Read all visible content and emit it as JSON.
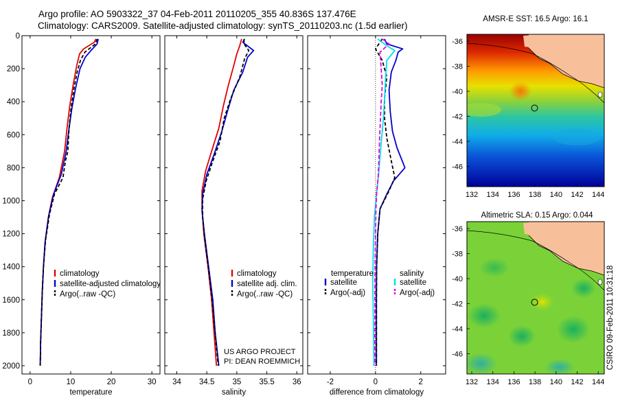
{
  "header": {
    "title_line1": "Argo profile: AO 5903322_37 04-Feb-2011 20110205_355 40.836S 137.476E",
    "title_line2": "Climatology: CARS2009. Satellite-adjusted climatology: synTS_20110203.nc (1.5d earlier)"
  },
  "colors": {
    "climatology": "#e00000",
    "satellite": "#0000cc",
    "argo": "#000000",
    "salinity_satellite": "#00e0e8",
    "argo_adj_salinity": "#e000e0",
    "land": "#f8c09a"
  },
  "depth_axis": {
    "ylim": [
      0,
      2050
    ],
    "ticks": [
      0,
      200,
      400,
      600,
      800,
      1000,
      1200,
      1400,
      1600,
      1800,
      2000
    ],
    "labels": [
      "0",
      "200",
      "400",
      "600",
      "800",
      "1000",
      "1200",
      "1400",
      "1600",
      "1800",
      "2000"
    ]
  },
  "chart_data": [
    {
      "id": "temperature",
      "type": "line",
      "xlabel": "temperature",
      "xlim": [
        -2,
        32
      ],
      "xticks": [
        0,
        10,
        20,
        30
      ],
      "xtick_labels": [
        "0",
        "10",
        "20",
        "30"
      ],
      "series": [
        {
          "name": "climatology",
          "color_key": "climatology",
          "dash": "",
          "points": [
            [
              16.2,
              20
            ],
            [
              15.8,
              40
            ],
            [
              13.2,
              80
            ],
            [
              12.2,
              110
            ],
            [
              11.5,
              180
            ],
            [
              10.6,
              300
            ],
            [
              9.8,
              420
            ],
            [
              9.1,
              560
            ],
            [
              8.5,
              700
            ],
            [
              7.2,
              860
            ],
            [
              5.5,
              980
            ],
            [
              4.5,
              1100
            ],
            [
              3.7,
              1250
            ],
            [
              3.3,
              1400
            ],
            [
              3.0,
              1550
            ],
            [
              2.8,
              1700
            ],
            [
              2.6,
              1850
            ],
            [
              2.5,
              2000
            ]
          ]
        },
        {
          "name": "satellite-adjusted climatology",
          "color_key": "satellite",
          "dash": "",
          "points": [
            [
              16.8,
              20
            ],
            [
              16.5,
              50
            ],
            [
              15.0,
              90
            ],
            [
              13.6,
              130
            ],
            [
              12.3,
              200
            ],
            [
              11.2,
              320
            ],
            [
              10.3,
              440
            ],
            [
              9.6,
              560
            ],
            [
              8.9,
              700
            ],
            [
              7.7,
              840
            ],
            [
              5.8,
              960
            ],
            [
              4.6,
              1090
            ],
            [
              3.7,
              1250
            ],
            [
              3.3,
              1400
            ],
            [
              3.0,
              1550
            ],
            [
              2.8,
              1700
            ],
            [
              2.6,
              1850
            ],
            [
              2.5,
              2000
            ]
          ]
        },
        {
          "name": "Argo(..raw -QC)",
          "color_key": "argo",
          "dash": "5,3",
          "points": [
            [
              16.5,
              20
            ],
            [
              16.1,
              50
            ],
            [
              13.5,
              100
            ],
            [
              12.4,
              150
            ],
            [
              11.6,
              220
            ],
            [
              10.8,
              320
            ],
            [
              10.1,
              440
            ],
            [
              9.6,
              560
            ],
            [
              9.3,
              700
            ],
            [
              8.7,
              760
            ],
            [
              8.1,
              860
            ],
            [
              6.0,
              960
            ],
            [
              4.8,
              1080
            ],
            [
              3.8,
              1240
            ],
            [
              3.3,
              1400
            ],
            [
              3.0,
              1550
            ],
            [
              2.8,
              1700
            ],
            [
              2.6,
              1850
            ],
            [
              2.5,
              2000
            ]
          ]
        }
      ],
      "legend": {
        "position": "lower-right",
        "entries": [
          "climatology",
          "satellite-adjusted climatology",
          "Argo(..raw -QC)"
        ]
      }
    },
    {
      "id": "salinity",
      "type": "line",
      "xlabel": "salinity",
      "xlim": [
        33.8,
        36.1
      ],
      "xticks": [
        34,
        34.5,
        35,
        35.5,
        36
      ],
      "xtick_labels": [
        "34",
        "34.5",
        "35",
        "35.5",
        "36"
      ],
      "series": [
        {
          "name": "climatology",
          "color_key": "climatology",
          "dash": "",
          "points": [
            [
              35.08,
              20
            ],
            [
              35.05,
              60
            ],
            [
              35.0,
              110
            ],
            [
              34.95,
              180
            ],
            [
              34.86,
              300
            ],
            [
              34.78,
              420
            ],
            [
              34.7,
              560
            ],
            [
              34.58,
              700
            ],
            [
              34.48,
              820
            ],
            [
              34.42,
              940
            ],
            [
              34.42,
              1050
            ],
            [
              34.45,
              1200
            ],
            [
              34.52,
              1400
            ],
            [
              34.58,
              1600
            ],
            [
              34.62,
              1800
            ],
            [
              34.66,
              2000
            ]
          ]
        },
        {
          "name": "satellite adj. clim.",
          "color_key": "satellite",
          "dash": "",
          "points": [
            [
              35.13,
              20
            ],
            [
              35.1,
              40
            ],
            [
              35.28,
              90
            ],
            [
              35.18,
              130
            ],
            [
              35.1,
              220
            ],
            [
              34.95,
              330
            ],
            [
              34.85,
              450
            ],
            [
              34.75,
              580
            ],
            [
              34.62,
              720
            ],
            [
              34.5,
              840
            ],
            [
              34.43,
              960
            ],
            [
              34.42,
              1060
            ],
            [
              34.46,
              1200
            ],
            [
              34.53,
              1400
            ],
            [
              34.6,
              1600
            ],
            [
              34.64,
              1800
            ],
            [
              34.7,
              2000
            ]
          ]
        },
        {
          "name": "Argo(..raw -QC)",
          "color_key": "argo",
          "dash": "5,3",
          "points": [
            [
              35.12,
              20
            ],
            [
              35.12,
              50
            ],
            [
              35.2,
              90
            ],
            [
              35.13,
              140
            ],
            [
              35.05,
              250
            ],
            [
              34.9,
              380
            ],
            [
              34.79,
              500
            ],
            [
              34.72,
              640
            ],
            [
              34.6,
              760
            ],
            [
              34.49,
              880
            ],
            [
              34.43,
              990
            ],
            [
              34.43,
              1100
            ],
            [
              34.47,
              1250
            ],
            [
              34.54,
              1450
            ],
            [
              34.6,
              1650
            ],
            [
              34.65,
              1850
            ],
            [
              34.69,
              2000
            ]
          ]
        }
      ],
      "legend": {
        "position": "lower-right",
        "entries": [
          "climatology",
          "satellite adj. clim.",
          "Argo(..raw -QC)"
        ]
      },
      "annotation": [
        "US ARGO PROJECT",
        "PI: DEAN ROEMMICH"
      ]
    },
    {
      "id": "difference",
      "type": "line",
      "xlabel": "difference from climatology",
      "xlim": [
        -3,
        3.1
      ],
      "xticks": [
        -2,
        0,
        2
      ],
      "xtick_labels": [
        "-2",
        "0",
        "2"
      ],
      "series": [
        {
          "name": "temperature satellite",
          "color_key": "satellite",
          "dash": "",
          "points": [
            [
              0.4,
              20
            ],
            [
              0.5,
              50
            ],
            [
              1.2,
              80
            ],
            [
              1.0,
              100
            ],
            [
              0.9,
              150
            ],
            [
              0.7,
              220
            ],
            [
              0.6,
              330
            ],
            [
              0.65,
              460
            ],
            [
              0.75,
              580
            ],
            [
              0.95,
              680
            ],
            [
              1.3,
              800
            ],
            [
              0.8,
              880
            ],
            [
              0.5,
              960
            ],
            [
              0.2,
              1050
            ],
            [
              0.1,
              1200
            ],
            [
              0.05,
              1400
            ],
            [
              0.04,
              1600
            ],
            [
              0.04,
              1800
            ],
            [
              0.04,
              2000
            ]
          ]
        },
        {
          "name": "temperature Argo(-adj)",
          "color_key": "argo",
          "dash": "5,3",
          "points": [
            [
              0.3,
              20
            ],
            [
              0.0,
              80
            ],
            [
              0.3,
              150
            ],
            [
              0.5,
              250
            ],
            [
              0.4,
              380
            ],
            [
              0.4,
              500
            ],
            [
              0.5,
              620
            ],
            [
              0.7,
              760
            ],
            [
              0.85,
              860
            ],
            [
              0.6,
              940
            ],
            [
              0.2,
              1050
            ],
            [
              0.1,
              1200
            ],
            [
              0.05,
              1400
            ],
            [
              0.04,
              1600
            ],
            [
              0.04,
              1800
            ],
            [
              0.04,
              2000
            ]
          ]
        },
        {
          "name": "salinity satellite",
          "color_key": "salinity_satellite",
          "dash": "",
          "points": [
            [
              0.1,
              20
            ],
            [
              0.6,
              70
            ],
            [
              0.85,
              90
            ],
            [
              0.5,
              150
            ],
            [
              0.45,
              250
            ],
            [
              0.4,
              380
            ],
            [
              0.35,
              500
            ],
            [
              0.25,
              650
            ],
            [
              0.15,
              820
            ],
            [
              0.05,
              950
            ],
            [
              -0.05,
              1100
            ],
            [
              -0.1,
              1300
            ],
            [
              -0.12,
              1500
            ],
            [
              -0.1,
              1700
            ],
            [
              -0.08,
              1850
            ],
            [
              -0.07,
              2000
            ]
          ]
        },
        {
          "name": "salinity Argo(-adj)",
          "color_key": "argo_adj_salinity",
          "dash": "6,3",
          "points": [
            [
              0.3,
              20
            ],
            [
              0.6,
              50
            ],
            [
              0.2,
              100
            ],
            [
              0.25,
              200
            ],
            [
              0.3,
              300
            ],
            [
              0.25,
              400
            ],
            [
              0.22,
              500
            ],
            [
              0.18,
              620
            ],
            [
              0.15,
              750
            ],
            [
              0.12,
              850
            ],
            [
              0.05,
              960
            ],
            [
              0.02,
              1050
            ],
            [
              0.0,
              1200
            ],
            [
              -0.02,
              1400
            ],
            [
              -0.03,
              1600
            ],
            [
              -0.03,
              1800
            ],
            [
              -0.03,
              2000
            ]
          ]
        }
      ],
      "legend": {
        "position": "lower-center",
        "headers": [
          "temperature",
          "salinity"
        ],
        "entries": [
          "satellite",
          "Argo(-adj)",
          "satellite",
          "Argo(-adj)"
        ]
      }
    }
  ],
  "maps": [
    {
      "id": "sst",
      "title": "AMSR-E SST: 16.5 Argo: 16.1",
      "lat_labels": [
        "-36",
        "-38",
        "-40",
        "-42",
        "-44",
        "-46"
      ],
      "lon_labels": [
        "132",
        "134",
        "136",
        "138",
        "140",
        "142",
        "144"
      ]
    },
    {
      "id": "sla",
      "title": "Altimetric SLA: 0.15 Argo: 0.044",
      "lat_labels": [
        "-36",
        "-38",
        "-40",
        "-42",
        "-44",
        "-46"
      ],
      "lon_labels": [
        "132",
        "134",
        "136",
        "138",
        "140",
        "142",
        "144"
      ]
    }
  ],
  "footer": {
    "credit": "CSIRO 09-Feb-2011 10:31:18"
  }
}
